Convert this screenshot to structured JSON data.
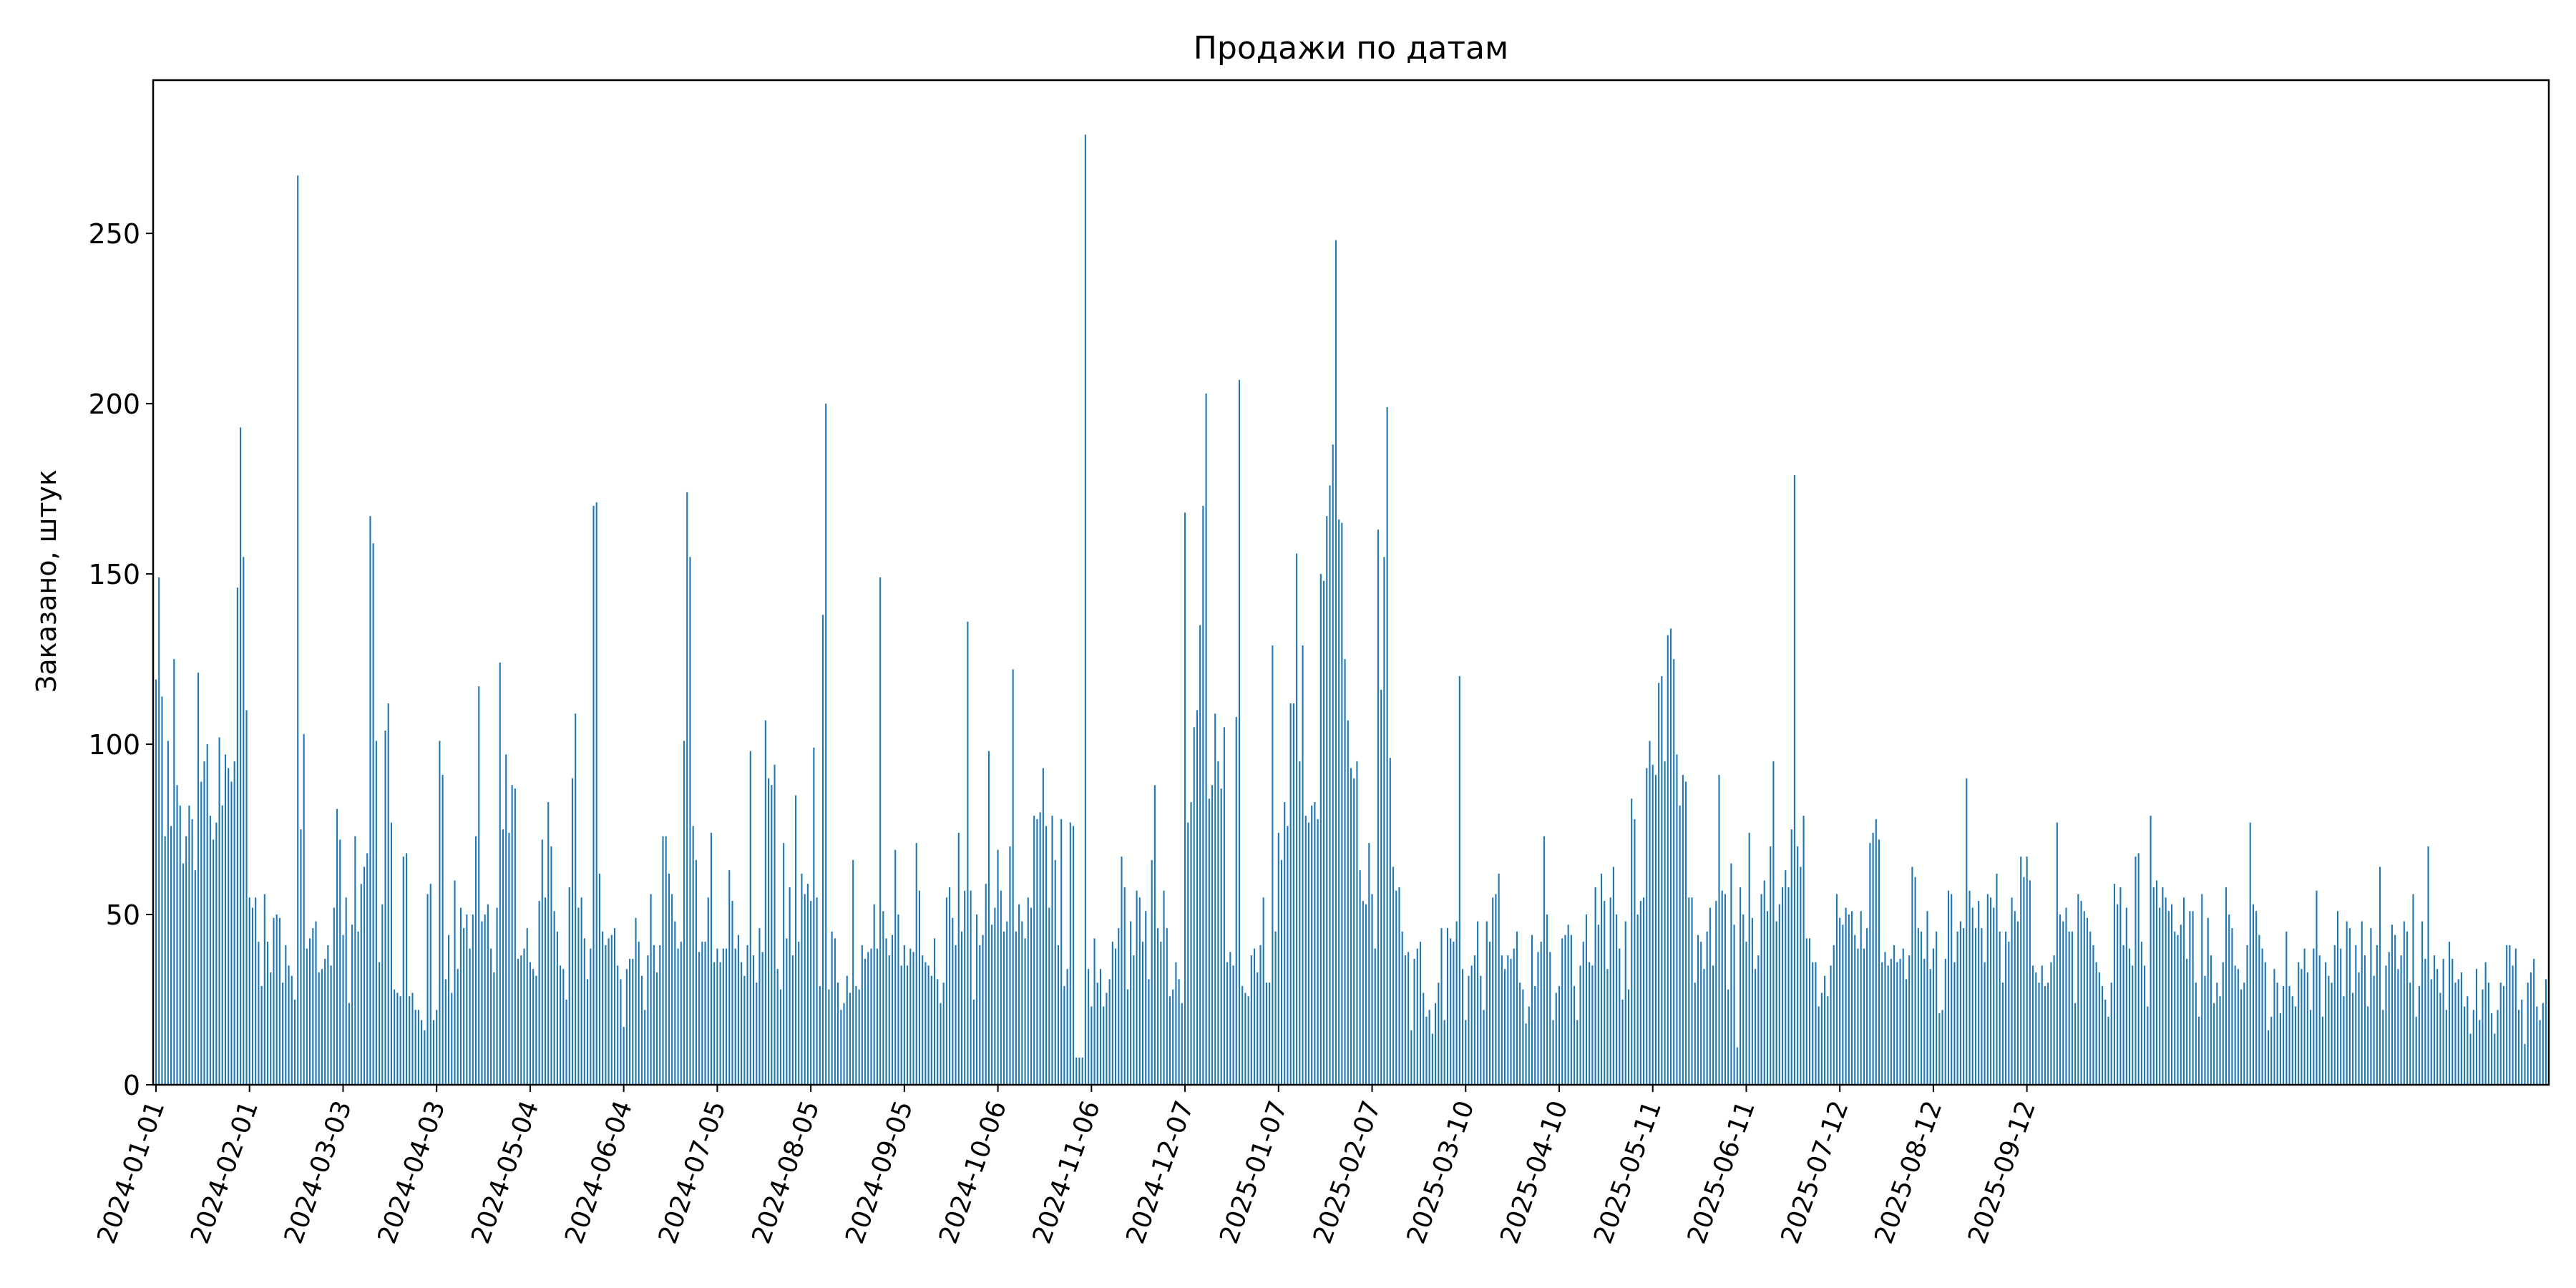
{
  "chart_data": {
    "type": "bar",
    "title": "Продажи по датам",
    "xlabel": "",
    "ylabel": "Заказано, штук",
    "x_start": "2024-01-01",
    "x_end": "2025-09-22",
    "ylim": [
      0,
      295
    ],
    "y_ticks": [
      0,
      50,
      100,
      150,
      200,
      250
    ],
    "x_ticks": [
      "2024-01-01",
      "2024-02-01",
      "2024-03-03",
      "2024-04-03",
      "2024-05-04",
      "2024-06-04",
      "2024-07-05",
      "2024-08-05",
      "2024-09-05",
      "2024-10-06",
      "2024-11-06",
      "2024-12-07",
      "2025-01-07",
      "2025-02-07",
      "2025-03-10",
      "2025-04-10",
      "2025-05-11",
      "2025-06-11",
      "2025-07-12",
      "2025-08-12",
      "2025-09-12"
    ],
    "grid": false,
    "legend": false,
    "bar_color": "#1f77b4",
    "values": [
      119,
      149,
      114,
      73,
      101,
      76,
      125,
      88,
      82,
      65,
      73,
      82,
      78,
      63,
      121,
      89,
      95,
      100,
      79,
      72,
      77,
      102,
      82,
      97,
      93,
      89,
      95,
      146,
      193,
      155,
      110,
      55,
      52,
      55,
      42,
      29,
      56,
      42,
      33,
      49,
      50,
      49,
      30,
      41,
      35,
      32,
      25,
      267,
      75,
      103,
      40,
      43,
      46,
      48,
      33,
      34,
      37,
      41,
      35,
      52,
      81,
      72,
      44,
      55,
      24,
      47,
      73,
      45,
      59,
      64,
      68,
      167,
      159,
      101,
      36,
      53,
      104,
      112,
      77,
      28,
      27,
      26,
      67,
      68,
      26,
      27,
      22,
      22,
      19,
      16,
      56,
      59,
      19,
      22,
      101,
      91,
      31,
      44,
      27,
      60,
      34,
      52,
      46,
      50,
      40,
      50,
      73,
      117,
      48,
      50,
      53,
      40,
      33,
      52,
      124,
      75,
      97,
      74,
      88,
      87,
      37,
      38,
      40,
      46,
      36,
      34,
      32,
      54,
      72,
      55,
      83,
      70,
      51,
      45,
      35,
      34,
      25,
      58,
      90,
      109,
      52,
      55,
      43,
      31,
      40,
      170,
      171,
      62,
      45,
      41,
      43,
      44,
      46,
      35,
      31,
      17,
      34,
      37,
      37,
      49,
      42,
      32,
      22,
      38,
      56,
      41,
      33,
      41,
      73,
      73,
      62,
      56,
      48,
      40,
      42,
      101,
      174,
      155,
      76,
      66,
      39,
      42,
      42,
      55,
      74,
      36,
      40,
      36,
      40,
      40,
      63,
      54,
      40,
      44,
      36,
      32,
      41,
      98,
      38,
      30,
      46,
      39,
      107,
      90,
      88,
      94,
      34,
      28,
      71,
      43,
      58,
      38,
      85,
      42,
      62,
      56,
      59,
      54,
      99,
      55,
      29,
      138,
      200,
      28,
      45,
      43,
      30,
      22,
      24,
      32,
      27,
      66,
      29,
      28,
      41,
      37,
      39,
      40,
      53,
      40,
      149,
      51,
      43,
      38,
      44,
      69,
      50,
      35,
      41,
      35,
      40,
      39,
      71,
      57,
      38,
      36,
      35,
      32,
      43,
      31,
      24,
      30,
      55,
      58,
      49,
      41,
      74,
      45,
      57,
      136,
      57,
      25,
      50,
      41,
      44,
      59,
      98,
      47,
      52,
      69,
      57,
      45,
      48,
      70,
      122,
      45,
      53,
      48,
      43,
      55,
      52,
      79,
      78,
      80,
      93,
      76,
      52,
      79,
      66,
      41,
      78,
      29,
      34,
      77,
      76,
      8,
      8,
      8,
      279,
      34,
      23,
      43,
      30,
      34,
      23,
      27,
      31,
      42,
      40,
      46,
      67,
      58,
      28,
      48,
      38,
      57,
      55,
      42,
      51,
      31,
      66,
      88,
      46,
      42,
      57,
      46,
      26,
      28,
      36,
      31,
      24,
      168,
      77,
      83,
      105,
      110,
      135,
      170,
      203,
      84,
      88,
      109,
      95,
      87,
      105,
      36,
      39,
      35,
      108,
      207,
      29,
      27,
      26,
      38,
      40,
      33,
      41,
      55,
      30,
      30,
      129,
      45,
      74,
      66,
      83,
      76,
      112,
      112,
      156,
      95,
      129,
      79,
      77,
      82,
      83,
      78,
      150,
      148,
      167,
      176,
      188,
      248,
      166,
      165,
      125,
      107,
      93,
      90,
      95,
      63,
      54,
      53,
      71,
      56,
      40,
      163,
      116,
      155,
      199,
      96,
      64,
      57,
      58,
      45,
      38,
      39,
      16,
      37,
      40,
      42,
      27,
      20,
      22,
      15,
      24,
      30,
      46,
      19,
      46,
      43,
      42,
      48,
      120,
      34,
      19,
      32,
      35,
      38,
      48,
      32,
      22,
      48,
      42,
      55,
      56,
      62,
      38,
      34,
      38,
      37,
      40,
      45,
      30,
      28,
      18,
      23,
      44,
      29,
      39,
      42,
      73,
      50,
      39,
      19,
      27,
      29,
      43,
      44,
      47,
      44,
      29,
      19,
      35,
      42,
      50,
      36,
      35,
      58,
      47,
      62,
      54,
      34,
      55,
      64,
      50,
      40,
      25,
      48,
      28,
      84,
      78,
      50,
      54,
      55,
      93,
      101,
      94,
      91,
      118,
      120,
      95,
      132,
      134,
      125,
      97,
      82,
      91,
      89,
      55,
      55,
      30,
      44,
      42,
      34,
      45,
      52,
      35,
      54,
      91,
      57,
      56,
      28,
      65,
      47,
      11,
      58,
      50,
      42,
      74,
      49,
      34,
      38,
      56,
      60,
      51,
      70,
      95,
      48,
      53,
      58,
      63,
      58,
      75,
      179,
      70,
      64,
      79,
      43,
      43,
      36,
      36,
      23,
      27,
      32,
      26,
      35,
      41,
      56,
      49,
      47,
      52,
      50,
      51,
      44,
      40,
      51,
      40,
      46,
      71,
      74,
      78,
      72,
      36,
      39,
      35,
      37,
      41,
      36,
      37,
      40,
      31,
      38,
      64,
      61,
      46,
      45,
      37,
      51,
      34,
      40,
      45,
      21,
      22,
      37,
      57,
      56,
      36,
      45,
      48,
      46,
      90,
      57,
      52,
      46,
      54,
      46,
      36,
      56,
      55,
      52,
      62,
      45,
      30,
      45,
      42,
      55,
      51,
      48,
      67,
      61,
      67,
      60,
      35,
      33,
      30,
      35,
      29,
      30,
      36,
      38,
      77,
      50,
      48,
      52,
      45,
      45,
      24,
      56,
      54,
      51,
      49,
      45,
      41,
      36,
      33,
      29,
      25,
      20,
      30,
      59,
      53,
      58,
      41,
      52,
      40,
      35,
      67,
      68,
      42,
      35,
      23,
      79,
      58,
      60,
      52,
      58,
      55,
      51,
      53,
      45,
      44,
      47,
      55,
      37,
      51,
      51,
      30,
      20,
      56,
      32,
      49,
      38,
      24,
      30,
      26,
      36,
      58,
      50,
      46,
      35,
      34,
      28,
      30,
      41,
      77,
      53,
      51,
      44,
      40,
      36,
      16,
      20,
      34,
      30,
      21,
      29,
      45,
      29,
      26,
      23,
      36,
      34,
      40,
      33,
      22,
      40,
      57,
      38,
      20,
      36,
      32,
      30,
      41,
      51,
      40,
      26,
      48,
      46,
      27,
      41,
      33,
      48,
      38,
      23,
      46,
      32,
      41,
      64,
      22,
      35,
      39,
      47,
      44,
      34,
      38,
      48,
      45,
      30,
      56,
      20,
      29,
      48,
      37,
      70,
      31,
      38,
      34,
      27,
      37,
      22,
      42,
      37,
      30,
      31,
      33,
      23,
      26,
      15,
      22,
      34,
      19,
      28,
      36,
      30,
      21,
      15,
      22,
      30,
      29,
      41,
      41,
      35,
      40,
      22,
      25,
      12,
      30,
      33,
      37,
      23,
      19,
      24,
      31
    ]
  }
}
